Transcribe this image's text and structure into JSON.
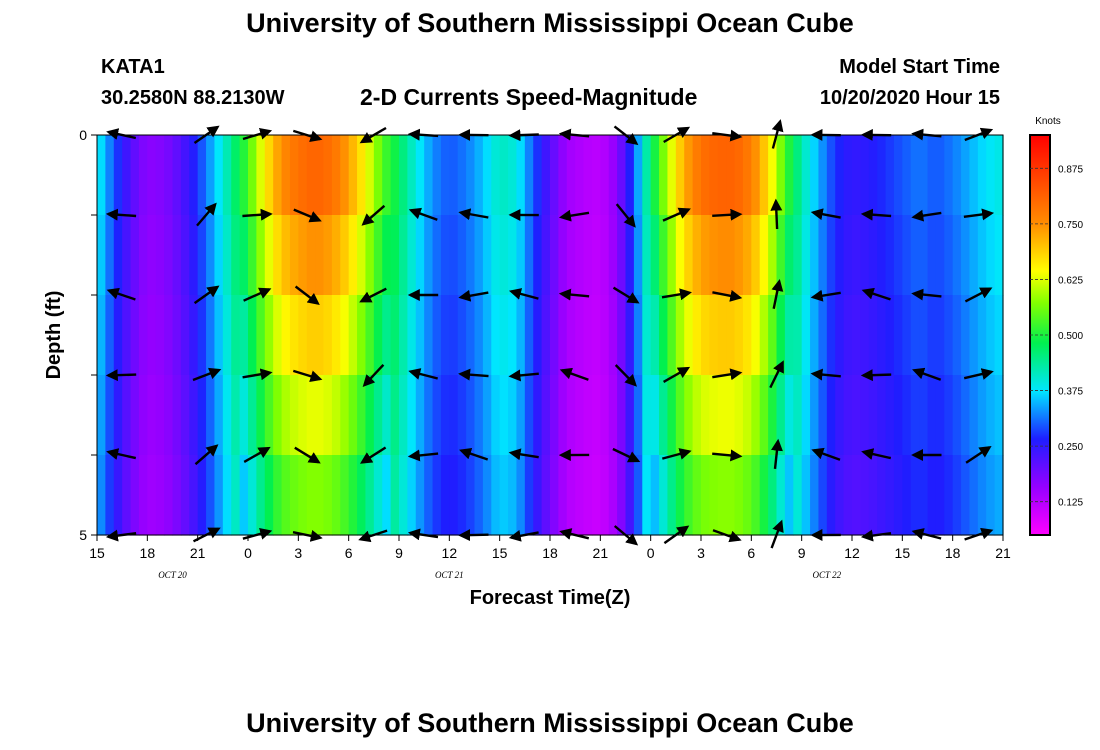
{
  "page": {
    "title_top": "University of Southern Mississippi Ocean Cube",
    "title_bottom": "University of Southern Mississippi Ocean Cube",
    "station": "KATA1",
    "coords": "30.2580N 88.2130W",
    "subtitle": "2-D Currents Speed-Magnitude",
    "model_label": "Model Start Time",
    "model_time": "10/20/2020 Hour 15"
  },
  "chart_data": {
    "type": "heatmap",
    "title": "2-D Currents Speed-Magnitude",
    "xlabel": "Forecast Time(Z)",
    "ylabel": "Depth (ft)",
    "x_ticks": [
      "15",
      "18",
      "21",
      "0",
      "3",
      "6",
      "9",
      "12",
      "15",
      "18",
      "21",
      "0",
      "3",
      "6",
      "9",
      "12",
      "15",
      "18",
      "21"
    ],
    "x_range_hours": [
      0,
      54
    ],
    "date_labels": [
      {
        "text": "OCT 20",
        "hour": 4.5
      },
      {
        "text": "OCT 21",
        "hour": 21
      },
      {
        "text": "OCT 22",
        "hour": 43.5
      }
    ],
    "y_ticks": [
      "0",
      "5"
    ],
    "ylim": [
      0,
      5
    ],
    "colorbar": {
      "label": "Knots",
      "min": 0.05,
      "max": 0.95,
      "ticks": [
        "0.875",
        "0.750",
        "0.625",
        "0.500",
        "0.375",
        "0.250",
        "0.125"
      ],
      "tick_values": [
        0.875,
        0.75,
        0.625,
        0.5,
        0.375,
        0.25,
        0.125
      ]
    },
    "depth_levels_ft": [
      0,
      1,
      2,
      3,
      4,
      5
    ],
    "speed_profile": [
      [
        0,
        0.4
      ],
      [
        1,
        0.3
      ],
      [
        2,
        0.22
      ],
      [
        3,
        0.17
      ],
      [
        4,
        0.18
      ],
      [
        5,
        0.22
      ],
      [
        6,
        0.28
      ],
      [
        7,
        0.36
      ],
      [
        8,
        0.45
      ],
      [
        9,
        0.55
      ],
      [
        10,
        0.68
      ],
      [
        11,
        0.78
      ],
      [
        12,
        0.82
      ],
      [
        13,
        0.84
      ],
      [
        14,
        0.82
      ],
      [
        15,
        0.76
      ],
      [
        16,
        0.67
      ],
      [
        17,
        0.56
      ],
      [
        18,
        0.48
      ],
      [
        19,
        0.4
      ],
      [
        20,
        0.33
      ],
      [
        21,
        0.3
      ],
      [
        22,
        0.32
      ],
      [
        23,
        0.36
      ],
      [
        24,
        0.42
      ],
      [
        25,
        0.4
      ],
      [
        26,
        0.3
      ],
      [
        27,
        0.22
      ],
      [
        28,
        0.15
      ],
      [
        29,
        0.13
      ],
      [
        30,
        0.12
      ],
      [
        31,
        0.17
      ],
      [
        32,
        0.3
      ],
      [
        33,
        0.48
      ],
      [
        34,
        0.62
      ],
      [
        35,
        0.75
      ],
      [
        36,
        0.82
      ],
      [
        37,
        0.84
      ],
      [
        38,
        0.84
      ],
      [
        39,
        0.8
      ],
      [
        40,
        0.7
      ],
      [
        41,
        0.55
      ],
      [
        42,
        0.43
      ],
      [
        43,
        0.35
      ],
      [
        44,
        0.28
      ],
      [
        45,
        0.25
      ],
      [
        46,
        0.26
      ],
      [
        47,
        0.28
      ],
      [
        48,
        0.3
      ],
      [
        49,
        0.32
      ],
      [
        50,
        0.3
      ],
      [
        51,
        0.32
      ],
      [
        52,
        0.35
      ],
      [
        53,
        0.38
      ],
      [
        54,
        0.4
      ]
    ],
    "vectors": [
      {
        "hour": 1.5,
        "u": -0.8,
        "v": 0.1
      },
      {
        "hour": 6.5,
        "u": 0.4,
        "v": 0.3
      },
      {
        "hour": 9.5,
        "u": 0.7,
        "v": 0.2
      },
      {
        "hour": 12.5,
        "u": 0.8,
        "v": -0.3
      },
      {
        "hour": 16.5,
        "u": -0.6,
        "v": -0.4
      },
      {
        "hour": 19.5,
        "u": -1,
        "v": 0.05
      },
      {
        "hour": 22.5,
        "u": -1,
        "v": 0.05
      },
      {
        "hour": 25.5,
        "u": -1,
        "v": 0.05
      },
      {
        "hour": 28.5,
        "u": -1,
        "v": 0.05
      },
      {
        "hour": 31.5,
        "u": 0.5,
        "v": -0.4
      },
      {
        "hour": 34.5,
        "u": 0.6,
        "v": 0.3
      },
      {
        "hour": 37.5,
        "u": 0.8,
        "v": -0.05
      },
      {
        "hour": 40.5,
        "u": 0.2,
        "v": 0.8
      },
      {
        "hour": 43.5,
        "u": -1,
        "v": 0.05
      },
      {
        "hour": 46.5,
        "u": -1,
        "v": 0.1
      },
      {
        "hour": 49.5,
        "u": -1,
        "v": 0.05
      },
      {
        "hour": 52.5,
        "u": 0.8,
        "v": 0.3
      }
    ]
  }
}
